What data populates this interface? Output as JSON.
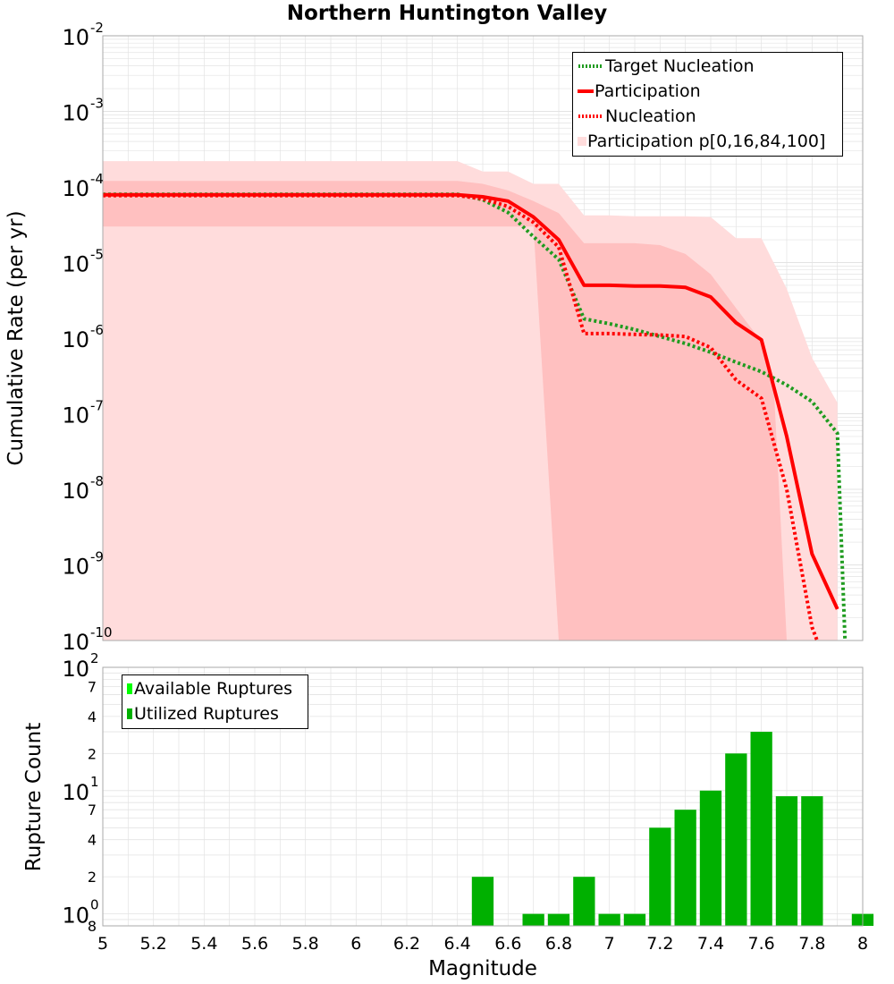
{
  "chart_data": [
    {
      "type": "line",
      "title": "Northern Huntington Valley",
      "xlabel": "",
      "ylabel": "Cumulative Rate (per yr)",
      "y_scale": "log",
      "ylim": [
        1e-10,
        0.01
      ],
      "xlim": [
        5,
        8
      ],
      "y_ticks": [
        {
          "base": "10",
          "exp": "-2",
          "value": 0.01
        },
        {
          "base": "10",
          "exp": "-3",
          "value": 0.001
        },
        {
          "base": "10",
          "exp": "-4",
          "value": 0.0001
        },
        {
          "base": "10",
          "exp": "-5",
          "value": 1e-05
        },
        {
          "base": "10",
          "exp": "-6",
          "value": 1e-06
        },
        {
          "base": "10",
          "exp": "-7",
          "value": 1e-07
        },
        {
          "base": "10",
          "exp": "-8",
          "value": 1e-08
        },
        {
          "base": "10",
          "exp": "-9",
          "value": 1e-09
        },
        {
          "base": "10",
          "exp": "-10",
          "value": 1e-10
        }
      ],
      "grid": true,
      "legend_position": "top-right",
      "bands": [
        {
          "name": "Participation p[0,16,84,100]",
          "kind": "p0-p100",
          "color": "#ffdcdc",
          "x": [
            5.0,
            6.4,
            6.5,
            6.6,
            6.7,
            6.8,
            6.9,
            7.0,
            7.1,
            7.2,
            7.3,
            7.4,
            7.5,
            7.6,
            7.7,
            7.8,
            7.9
          ],
          "upper": [
            0.00022,
            0.00022,
            0.00016,
            0.00016,
            0.00011,
            0.00011,
            4.2e-05,
            4.2e-05,
            4.1e-05,
            4.1e-05,
            4.1e-05,
            4e-05,
            2.1e-05,
            2.1e-05,
            4.5e-06,
            5.5e-07,
            1.4e-07
          ],
          "lower": [
            1e-10,
            1e-10,
            1e-10,
            1e-10,
            1e-10,
            1e-10,
            1e-10,
            1e-10,
            1e-10,
            1e-10,
            1e-10,
            1e-10,
            1e-10,
            1e-10,
            1e-10,
            1e-10,
            1e-10
          ]
        },
        {
          "name": "",
          "kind": "p16-p84",
          "color": "#ffc0c0",
          "x": [
            5.0,
            6.4,
            6.5,
            6.6,
            6.7,
            6.8,
            6.9,
            7.0,
            7.1,
            7.2,
            7.3,
            7.4,
            7.5,
            7.6,
            7.65,
            7.7
          ],
          "upper": [
            0.00012,
            0.00012,
            0.00011,
            9e-05,
            6.5e-05,
            4.5e-05,
            1.8e-05,
            1.8e-05,
            1.8e-05,
            1.7e-05,
            1.3e-05,
            7e-06,
            2.5e-06,
            9e-07,
            2e-07,
            1e-10
          ],
          "lower": [
            3e-05,
            3e-05,
            3e-05,
            3e-05,
            3e-05,
            1e-10,
            1e-10,
            1e-10,
            1e-10,
            1e-10,
            1e-10,
            1e-10,
            1e-10,
            1e-10,
            1e-10,
            1e-10
          ]
        }
      ],
      "series": [
        {
          "name": "Target Nucleation",
          "color": "#1f9b1f",
          "style": "dotted",
          "x": [
            5.0,
            6.4,
            6.5,
            6.6,
            6.7,
            6.8,
            6.9,
            7.0,
            7.1,
            7.2,
            7.3,
            7.4,
            7.5,
            7.6,
            7.7,
            7.8,
            7.9,
            7.93
          ],
          "y": [
            8e-05,
            8e-05,
            6.8e-05,
            4.6e-05,
            2.2e-05,
            1.1e-05,
            1.8e-06,
            1.55e-06,
            1.3e-06,
            1.05e-06,
            8.5e-07,
            6.5e-07,
            4.8e-07,
            3.6e-07,
            2.4e-07,
            1.45e-07,
            5.5e-08,
            1e-10
          ]
        },
        {
          "name": "Participation",
          "color": "#ff0000",
          "style": "solid",
          "x": [
            5.0,
            6.4,
            6.5,
            6.6,
            6.7,
            6.8,
            6.9,
            7.0,
            7.1,
            7.2,
            7.3,
            7.4,
            7.5,
            7.6,
            7.7,
            7.8,
            7.9
          ],
          "y": [
            7.9e-05,
            7.9e-05,
            7.4e-05,
            6.5e-05,
            4e-05,
            2e-05,
            5e-06,
            5e-06,
            4.9e-06,
            4.9e-06,
            4.7e-06,
            3.5e-06,
            1.6e-06,
            9.5e-07,
            5e-08,
            1.4e-09,
            2.6e-10
          ]
        },
        {
          "name": "Nucleation",
          "color": "#ff0000",
          "style": "dotted",
          "x": [
            5.0,
            6.4,
            6.5,
            6.6,
            6.7,
            6.8,
            6.9,
            7.0,
            7.1,
            7.2,
            7.3,
            7.4,
            7.5,
            7.6,
            7.7,
            7.8,
            7.82
          ],
          "y": [
            7.7e-05,
            7.7e-05,
            7e-05,
            5.5e-05,
            3.4e-05,
            1.6e-05,
            1.15e-06,
            1.15e-06,
            1.12e-06,
            1.1e-06,
            1.05e-06,
            7.5e-07,
            2.8e-07,
            1.6e-07,
            1e-08,
            1.5e-10,
            1e-10
          ]
        }
      ]
    },
    {
      "type": "bar",
      "title": "",
      "xlabel": "Magnitude",
      "ylabel": "Rupture Count",
      "y_scale": "log",
      "ylim": [
        0.8,
        100
      ],
      "xlim": [
        5,
        8
      ],
      "x_ticks": [
        "5",
        "5.2",
        "5.4",
        "5.6",
        "5.8",
        "6",
        "6.2",
        "6.4",
        "6.6",
        "6.8",
        "7",
        "7.2",
        "7.4",
        "7.6",
        "7.8",
        "8"
      ],
      "y_major_ticks": [
        {
          "base": "10",
          "exp": "2",
          "value": 100
        },
        {
          "base": "10",
          "exp": "1",
          "value": 10
        },
        {
          "base": "10",
          "exp": "0",
          "value": 1
        }
      ],
      "y_minor_labels": [
        {
          "label": "7",
          "value": 70
        },
        {
          "label": "4",
          "value": 40
        },
        {
          "label": "2",
          "value": 20
        },
        {
          "label": "7",
          "value": 7
        },
        {
          "label": "4",
          "value": 4
        },
        {
          "label": "2",
          "value": 2
        },
        {
          "label": "8",
          "value": 0.8
        }
      ],
      "grid": true,
      "legend_position": "top-left",
      "categories": [
        "6.5",
        "6.6",
        "6.7",
        "6.8",
        "6.9",
        "7.0",
        "7.1",
        "7.2",
        "7.3",
        "7.4",
        "7.5",
        "7.6",
        "7.7",
        "7.8",
        "7.9",
        "8.0"
      ],
      "series": [
        {
          "name": "Available Ruptures",
          "color": "#00ff00",
          "values": [
            2,
            0,
            1,
            1,
            2,
            1,
            1,
            5,
            7,
            10,
            20,
            30,
            9,
            9,
            0,
            1
          ]
        },
        {
          "name": "Utilized Ruptures",
          "color": "#00b000",
          "values": [
            2,
            0,
            1,
            1,
            2,
            1,
            1,
            5,
            7,
            10,
            20,
            30,
            9,
            9,
            0,
            1
          ]
        }
      ]
    }
  ]
}
